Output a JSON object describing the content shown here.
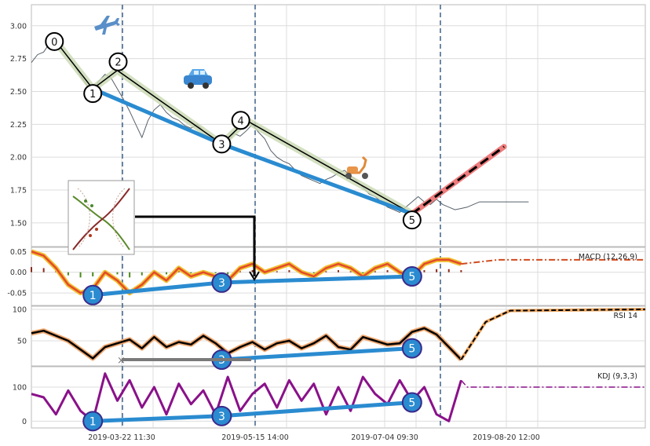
{
  "colors": {
    "price": "#56606a",
    "trend": "#2a8bd0",
    "proj_under": "#ee7c7c",
    "proj_dash": "#000000",
    "macd_bg": "#f0c030",
    "macd_fg": "#e34a2a",
    "macd_sig": "#d04a1e",
    "rsi_bg": "#f0a870",
    "rsi_fg": "#000000",
    "kdj": "#8a118a",
    "vline": "#4a6a90",
    "grid": "#dcdcdc",
    "wave_band": "#c8d8b0"
  },
  "icons": [
    "airplane-icon",
    "car-icon",
    "scooter-icon",
    "thumbnail-image"
  ],
  "chart_data": [
    {
      "type": "line",
      "panel": "price",
      "title": "",
      "xlabel": "",
      "ylabel": "",
      "ylim": [
        1.32,
        3.16
      ],
      "yticks": [
        "3.00",
        "2.75",
        "2.50",
        "2.25",
        "2.00",
        "1.75",
        "1.50"
      ],
      "xticks": [
        "2019-03-22 11:30",
        "2019-05-15 14:00",
        "2019-07-04 09:30",
        "2019-08-20 12:00"
      ],
      "series": [
        {
          "kind": "price",
          "x": [
            0,
            10,
            20,
            30,
            40,
            50,
            60,
            70,
            80,
            90,
            100,
            110,
            120,
            130,
            140,
            150,
            160,
            170,
            180,
            190,
            200,
            210,
            220,
            230,
            240,
            250,
            260,
            270,
            280,
            290,
            300,
            310,
            320,
            330,
            340,
            350,
            360,
            370,
            380,
            390,
            400,
            410,
            420,
            430,
            440,
            450,
            460,
            470,
            480,
            490,
            500,
            510,
            520,
            530,
            540,
            550,
            560,
            570,
            580,
            590,
            600,
            610,
            620,
            630,
            640,
            650,
            660,
            670,
            680,
            690,
            700,
            710,
            720,
            730,
            740,
            750,
            760,
            770,
            780,
            790,
            800,
            810
          ],
          "y": [
            2.72,
            2.78,
            2.8,
            2.87,
            2.9,
            2.82,
            2.76,
            2.7,
            2.62,
            2.55,
            2.51,
            2.58,
            2.63,
            2.6,
            2.52,
            2.44,
            2.35,
            2.25,
            2.15,
            2.28,
            2.36,
            2.4,
            2.34,
            2.3,
            2.28,
            2.24,
            2.22,
            2.25,
            2.2,
            2.17,
            2.14,
            2.11,
            2.12,
            2.18,
            2.16,
            2.2,
            2.25,
            2.19,
            2.14,
            2.05,
            2.0,
            1.97,
            1.95,
            1.9,
            1.86,
            1.84,
            1.82,
            1.8,
            1.83,
            1.85,
            1.88,
            1.9,
            1.86,
            1.82,
            1.77,
            1.72,
            1.7,
            1.66,
            1.62,
            1.6,
            1.58,
            1.62,
            1.66,
            1.7,
            1.66,
            1.64,
            1.68,
            1.64,
            1.62,
            1.6,
            1.61,
            1.62,
            1.64,
            1.66,
            1.66,
            1.66,
            1.66,
            1.66,
            1.66,
            1.66,
            1.66,
            1.66
          ]
        },
        {
          "kind": "wave",
          "labels": [
            "0",
            "1",
            "2",
            "3",
            "4",
            "5"
          ],
          "x": [
            40,
            100,
            140,
            310,
            350,
            620
          ],
          "y": [
            2.88,
            2.52,
            2.66,
            2.1,
            2.28,
            1.57
          ]
        },
        {
          "kind": "trend",
          "x": [
            100,
            310,
            620
          ],
          "y": [
            2.52,
            2.1,
            1.57
          ]
        },
        {
          "kind": "projection",
          "x": [
            620,
            770
          ],
          "y": [
            1.57,
            2.08
          ]
        }
      ],
      "xlim": [
        0,
        1000
      ]
    },
    {
      "type": "line",
      "panel": "macd",
      "legend": "MACD (12,26,9)",
      "ylim": [
        -0.08,
        0.06
      ],
      "yticks": [
        "0.05",
        "0.00",
        "-0.05"
      ],
      "series": [
        {
          "kind": "macd",
          "x": [
            0,
            20,
            40,
            60,
            80,
            100,
            120,
            140,
            160,
            180,
            200,
            220,
            240,
            260,
            280,
            300,
            320,
            340,
            360,
            380,
            400,
            420,
            440,
            460,
            480,
            500,
            520,
            540,
            560,
            580,
            600,
            620,
            640,
            660,
            680,
            700
          ],
          "y": [
            0.05,
            0.04,
            0.01,
            -0.03,
            -0.05,
            -0.04,
            0.0,
            -0.02,
            -0.05,
            -0.03,
            0.0,
            -0.02,
            0.01,
            -0.01,
            0.0,
            -0.01,
            -0.02,
            0.01,
            0.02,
            0.0,
            0.01,
            0.02,
            0.0,
            -0.01,
            0.01,
            0.02,
            0.01,
            -0.01,
            0.01,
            0.02,
            0.0,
            -0.01,
            0.02,
            0.03,
            0.03,
            0.02
          ]
        },
        {
          "kind": "projection",
          "x": [
            700,
            760,
            820,
            1000
          ],
          "y": [
            0.02,
            0.03,
            0.03,
            0.03
          ]
        },
        {
          "kind": "trend",
          "labels": [
            "1",
            "3",
            "5"
          ],
          "x": [
            100,
            310,
            620
          ],
          "y": [
            -0.055,
            -0.025,
            -0.01
          ]
        }
      ],
      "xlim": [
        0,
        1000
      ]
    },
    {
      "type": "line",
      "panel": "rsi",
      "legend": "RSI 14",
      "ylim": [
        10,
        105
      ],
      "yticks": [
        "100",
        "50"
      ],
      "series": [
        {
          "kind": "rsi",
          "x": [
            0,
            20,
            40,
            60,
            80,
            100,
            120,
            140,
            160,
            180,
            200,
            220,
            240,
            260,
            280,
            300,
            320,
            340,
            360,
            380,
            400,
            420,
            440,
            460,
            480,
            500,
            520,
            540,
            560,
            580,
            600,
            620,
            640,
            660,
            680,
            700
          ],
          "y": [
            62,
            66,
            58,
            50,
            36,
            22,
            40,
            46,
            52,
            38,
            56,
            40,
            48,
            44,
            58,
            46,
            30,
            40,
            48,
            36,
            46,
            50,
            38,
            46,
            58,
            40,
            36,
            56,
            50,
            44,
            46,
            64,
            70,
            60,
            40,
            20
          ]
        },
        {
          "kind": "projection",
          "x": [
            700,
            740,
            780,
            1000
          ],
          "y": [
            20,
            80,
            98,
            100
          ]
        },
        {
          "kind": "trend",
          "labels": [
            "3",
            "5"
          ],
          "x": [
            310,
            620
          ],
          "y": [
            20,
            38
          ]
        }
      ],
      "xlim": [
        0,
        1000
      ]
    },
    {
      "type": "line",
      "panel": "kdj",
      "legend": "KDJ (9,3,3)",
      "ylim": [
        -20,
        160
      ],
      "yticks": [
        "100",
        "0"
      ],
      "series": [
        {
          "kind": "kdj",
          "x": [
            0,
            20,
            40,
            60,
            80,
            100,
            120,
            140,
            160,
            180,
            200,
            220,
            240,
            260,
            280,
            300,
            320,
            340,
            360,
            380,
            400,
            420,
            440,
            460,
            480,
            500,
            520,
            540,
            560,
            580,
            600,
            620,
            640,
            660,
            680,
            700
          ],
          "y": [
            80,
            70,
            20,
            90,
            30,
            0,
            140,
            60,
            120,
            40,
            100,
            20,
            110,
            50,
            90,
            20,
            130,
            30,
            80,
            110,
            40,
            120,
            60,
            110,
            20,
            100,
            30,
            130,
            80,
            50,
            120,
            60,
            100,
            20,
            0,
            120
          ]
        },
        {
          "kind": "projection",
          "x": [
            700,
            710,
            1000
          ],
          "y": [
            120,
            100,
            100
          ]
        },
        {
          "kind": "trend",
          "labels": [
            "1",
            "3",
            "5"
          ],
          "x": [
            100,
            310,
            620
          ],
          "y": [
            0,
            15,
            55
          ]
        }
      ],
      "xlim": [
        0,
        1000
      ]
    }
  ]
}
